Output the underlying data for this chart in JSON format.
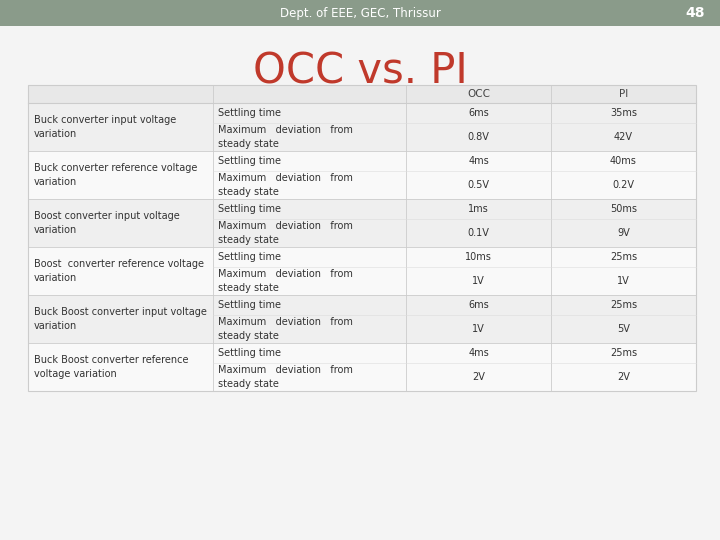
{
  "header_bg": "#8a9b8a",
  "header_text": "Dept. of EEE, GEC, Thrissur",
  "page_num": "48",
  "title": "OCC vs. PI",
  "title_color": "#c0392b",
  "bg_color": "#f4f4f4",
  "row_colors": [
    "#efefef",
    "#f9f9f9"
  ],
  "header_row_bg": "#e8e8e8",
  "border_color": "#cccccc",
  "text_color": "#333333",
  "rows": [
    {
      "category": "Buck converter input voltage\nvariation",
      "sub_rows": [
        {
          "metric": "Settling time",
          "occ": "6ms",
          "pi": "35ms"
        },
        {
          "metric": "Maximum   deviation   from\nsteady state",
          "occ": "0.8V",
          "pi": "42V"
        }
      ]
    },
    {
      "category": "Buck converter reference voltage\nvariation",
      "sub_rows": [
        {
          "metric": "Settling time",
          "occ": "4ms",
          "pi": "40ms"
        },
        {
          "metric": "Maximum   deviation   from\nsteady state",
          "occ": "0.5V",
          "pi": "0.2V"
        }
      ]
    },
    {
      "category": "Boost converter input voltage\nvariation",
      "sub_rows": [
        {
          "metric": "Settling time",
          "occ": "1ms",
          "pi": "50ms"
        },
        {
          "metric": "Maximum   deviation   from\nsteady state",
          "occ": "0.1V",
          "pi": "9V"
        }
      ]
    },
    {
      "category": "Boost  converter reference voltage\nvariation",
      "sub_rows": [
        {
          "metric": "Settling time",
          "occ": "10ms",
          "pi": "25ms"
        },
        {
          "metric": "Maximum   deviation   from\nsteady state",
          "occ": "1V",
          "pi": "1V"
        }
      ]
    },
    {
      "category": "Buck Boost converter input voltage\nvariation",
      "sub_rows": [
        {
          "metric": "Settling time",
          "occ": "6ms",
          "pi": "25ms"
        },
        {
          "metric": "Maximum   deviation   from\nsteady state",
          "occ": "1V",
          "pi": "5V"
        }
      ]
    },
    {
      "category": "Buck Boost converter reference\nvoltage variation",
      "sub_rows": [
        {
          "metric": "Settling time",
          "occ": "4ms",
          "pi": "25ms"
        },
        {
          "metric": "Maximum   deviation   from\nsteady state",
          "occ": "2V",
          "pi": "2V"
        }
      ]
    }
  ]
}
